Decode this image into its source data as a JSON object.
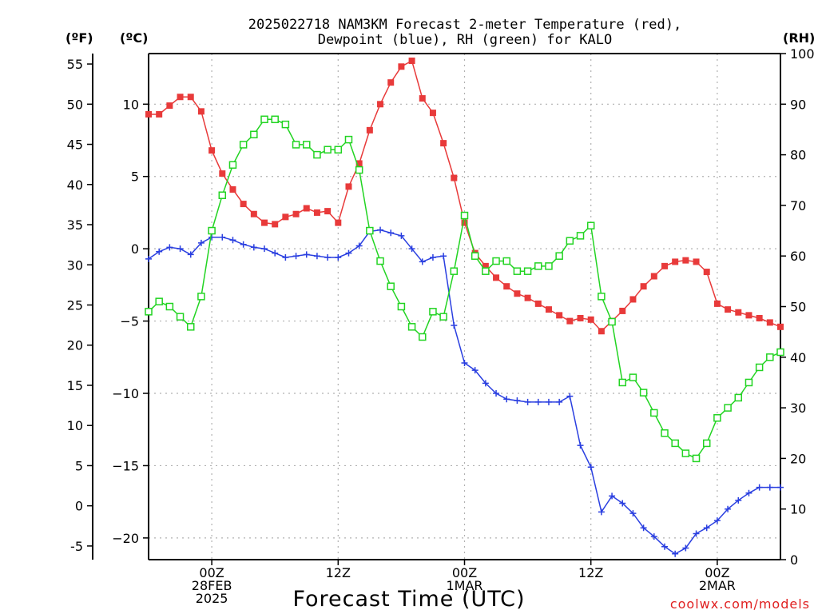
{
  "chart_data": {
    "type": "line",
    "title_line1": "2025022718 NAM3KM Forecast 2-meter Temperature (red),",
    "title_line2": "Dewpoint (blue), RH (green) for KALO",
    "axis_unit_f": "(ºF)",
    "axis_unit_c": "(ºC)",
    "axis_unit_rh": "(RH)",
    "xlabel": "Forecast Time (UTC)",
    "credit": "coolwx.com/models",
    "x_start_hour": -6,
    "x_end_hour": 54,
    "ylim_c": [
      -21.5,
      13.5
    ],
    "ylim_rh": [
      0,
      100
    ],
    "f_ticks": [
      55,
      50,
      45,
      40,
      35,
      30,
      25,
      20,
      15,
      10,
      5,
      0,
      -5
    ],
    "f_tick_labels": [
      "55",
      "50",
      "45",
      "40",
      "35",
      "30",
      "25",
      "20",
      "15",
      "10",
      "5",
      "0",
      "-5"
    ],
    "c_ticks": [
      10,
      5,
      0,
      -5,
      -10,
      -15,
      -20
    ],
    "c_tick_labels": [
      "10",
      "5",
      "0",
      "−5",
      "−10",
      "−15",
      "−20"
    ],
    "rh_ticks": [
      100,
      90,
      80,
      70,
      60,
      50,
      40,
      30,
      20,
      10,
      0
    ],
    "rh_tick_labels": [
      "100",
      "90",
      "80",
      "70",
      "60",
      "50",
      "40",
      "30",
      "20",
      "10",
      "0"
    ],
    "x_ticks": [
      {
        "hour": 0,
        "l1": "00Z",
        "l2": "28FEB",
        "l3": "2025"
      },
      {
        "hour": 12,
        "l1": "12Z",
        "l2": "",
        "l3": ""
      },
      {
        "hour": 24,
        "l1": "00Z",
        "l2": "1MAR",
        "l3": ""
      },
      {
        "hour": 36,
        "l1": "12Z",
        "l2": "",
        "l3": ""
      },
      {
        "hour": 48,
        "l1": "00Z",
        "l2": "2MAR",
        "l3": ""
      }
    ],
    "hours": [
      -6,
      -5,
      -4,
      -3,
      -2,
      -1,
      0,
      1,
      2,
      3,
      4,
      5,
      6,
      7,
      8,
      9,
      10,
      11,
      12,
      13,
      14,
      15,
      16,
      17,
      18,
      19,
      20,
      21,
      22,
      23,
      24,
      25,
      26,
      27,
      28,
      29,
      30,
      31,
      32,
      33,
      34,
      35,
      36,
      37,
      38,
      39,
      40,
      41,
      42,
      43,
      44,
      45,
      46,
      47,
      48,
      49,
      50,
      51,
      52,
      53,
      54
    ],
    "series": [
      {
        "name": "Temperature",
        "unit": "C",
        "color": "#e83a3a",
        "marker": "filled-square",
        "values": [
          9.3,
          9.3,
          9.9,
          10.5,
          10.5,
          9.5,
          6.8,
          5.2,
          4.1,
          3.1,
          2.4,
          1.8,
          1.7,
          2.2,
          2.4,
          2.8,
          2.5,
          2.6,
          1.8,
          4.3,
          5.9,
          8.2,
          10.0,
          11.5,
          12.6,
          13.0,
          10.4,
          9.4,
          7.3,
          4.9,
          1.8,
          -0.3,
          -1.2,
          -2.0,
          -2.6,
          -3.1,
          -3.4,
          -3.8,
          -4.2,
          -4.6,
          -5.0,
          -4.8,
          -4.9,
          -5.7,
          -5.0,
          -4.3,
          -3.5,
          -2.6,
          -1.9,
          -1.2,
          -0.9,
          -0.8,
          -0.9,
          -1.6,
          -3.8,
          -4.2,
          -4.4,
          -4.6,
          -4.8,
          -5.1,
          -5.4
        ]
      },
      {
        "name": "Dewpoint",
        "unit": "C",
        "color": "#2a3fe0",
        "marker": "plus",
        "values": [
          -0.7,
          -0.2,
          0.1,
          0.0,
          -0.4,
          0.4,
          0.8,
          0.8,
          0.6,
          0.3,
          0.1,
          0.0,
          -0.3,
          -0.6,
          -0.5,
          -0.4,
          -0.5,
          -0.6,
          -0.6,
          -0.3,
          0.2,
          1.2,
          1.3,
          1.1,
          0.9,
          0.0,
          -0.9,
          -0.6,
          -0.5,
          -5.3,
          -7.9,
          -8.4,
          -9.3,
          -10.0,
          -10.4,
          -10.5,
          -10.6,
          -10.6,
          -10.6,
          -10.6,
          -10.2,
          -13.6,
          -15.1,
          -18.2,
          -17.1,
          -17.6,
          -18.3,
          -19.3,
          -19.9,
          -20.6,
          -21.1,
          -20.7,
          -19.7,
          -19.3,
          -18.8,
          -18.0,
          -17.4,
          -16.9,
          -16.5,
          -16.5,
          -16.5
        ]
      },
      {
        "name": "RH",
        "unit": "%",
        "color": "#22d422",
        "marker": "open-square",
        "values": [
          49,
          51,
          50,
          48,
          46,
          52,
          65,
          72,
          78,
          82,
          84,
          87,
          87,
          86,
          82,
          82,
          80,
          81,
          81,
          83,
          77,
          65,
          59,
          54,
          50,
          46,
          44,
          49,
          48,
          57,
          68,
          60,
          57,
          59,
          59,
          57,
          57,
          58,
          58,
          60,
          63,
          64,
          66,
          52,
          47,
          35,
          36,
          33,
          29,
          25,
          23,
          21,
          20,
          23,
          28,
          30,
          32,
          35,
          38,
          40,
          41
        ]
      }
    ]
  }
}
